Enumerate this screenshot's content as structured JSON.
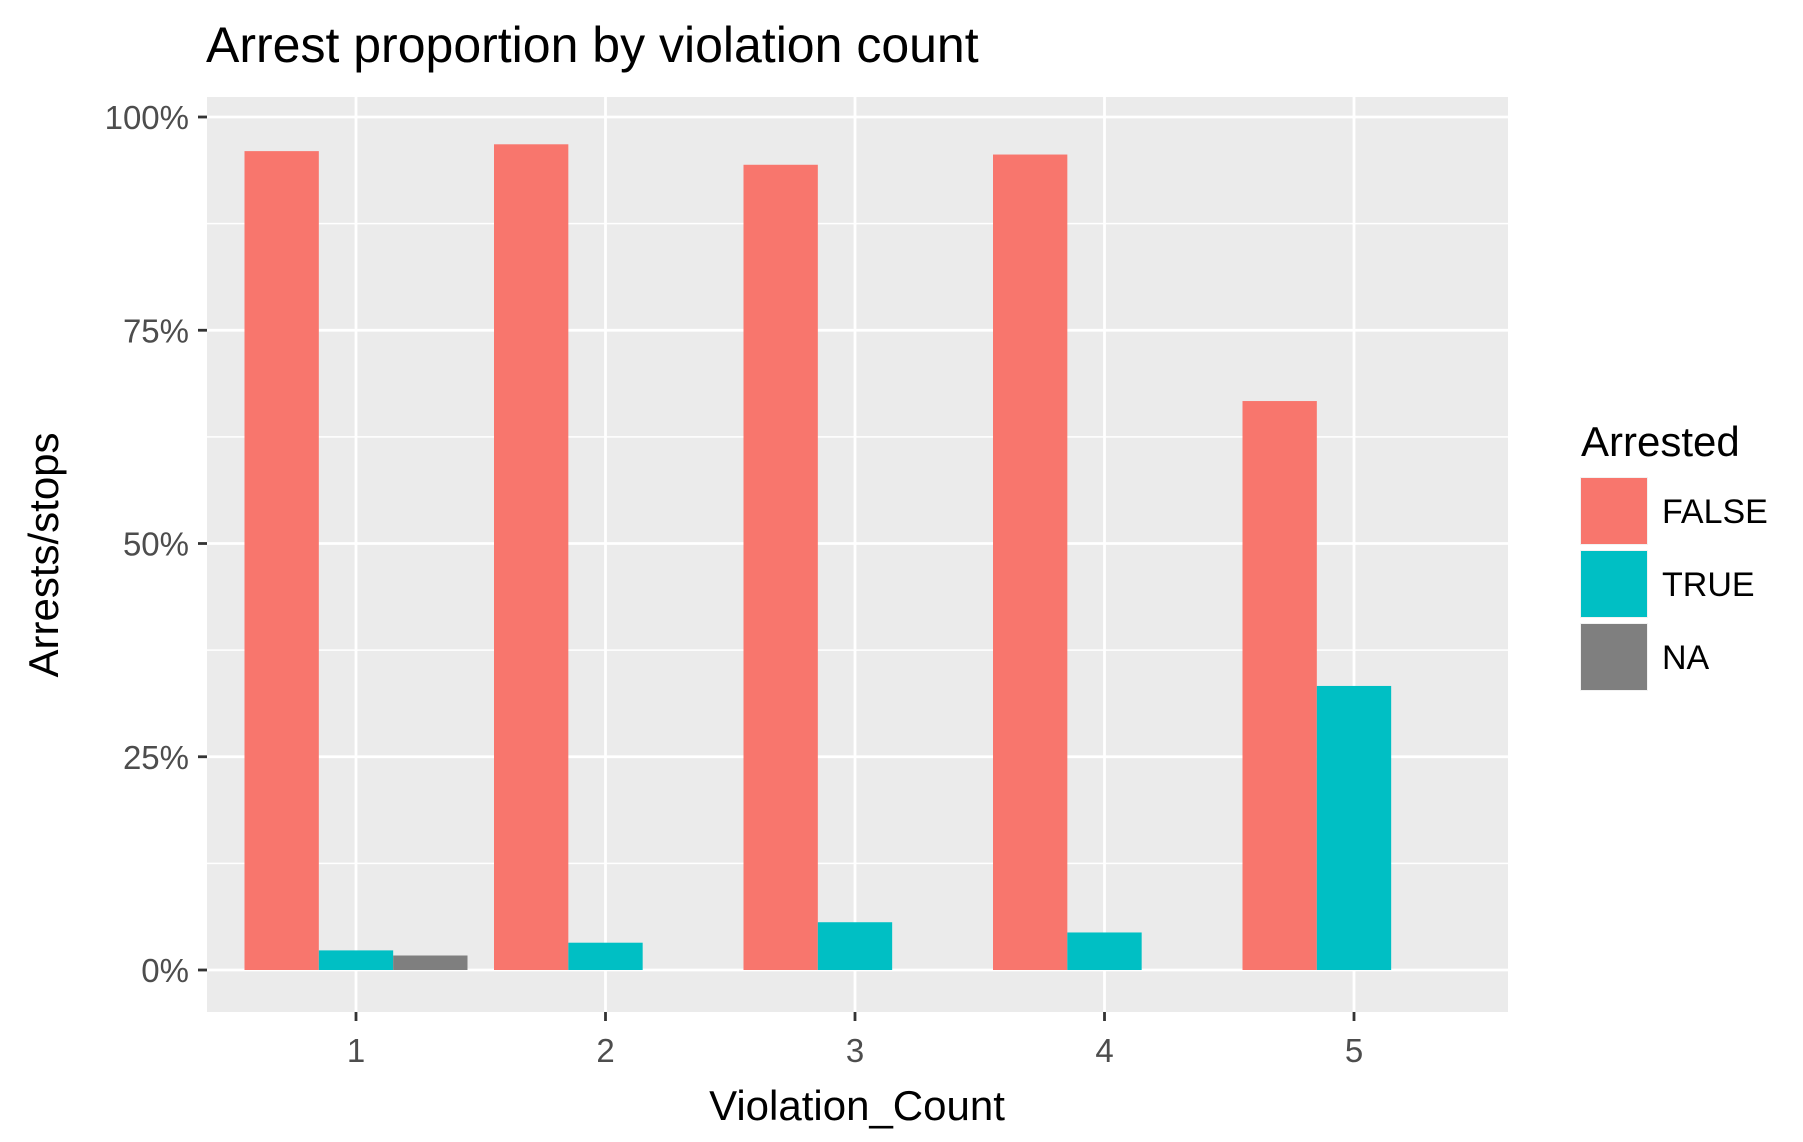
{
  "chart_data": {
    "type": "bar",
    "title": "Arrest proportion by violation count",
    "xlabel": "Violation_Count",
    "ylabel": "Arrests/stops",
    "categories": [
      "1",
      "2",
      "3",
      "4",
      "5"
    ],
    "series": [
      {
        "name": "FALSE",
        "color": "#f8766d",
        "values": [
          96.0,
          96.8,
          94.4,
          95.6,
          66.7
        ]
      },
      {
        "name": "TRUE",
        "color": "#00bfc4",
        "values": [
          2.3,
          3.2,
          5.6,
          4.4,
          33.3
        ]
      },
      {
        "name": "NA",
        "color": "#7f7f7f",
        "values": [
          1.7,
          null,
          null,
          null,
          null
        ]
      }
    ],
    "ylim": [
      0,
      100
    ],
    "yticks": [
      0,
      25,
      50,
      75,
      100
    ],
    "ytick_labels": [
      "0%",
      "25%",
      "50%",
      "75%",
      "100%"
    ],
    "legend": {
      "title": "Arrested",
      "placement": "right"
    },
    "grid": true,
    "panel_color": "#ebebeb",
    "grid_color": "#ffffff"
  }
}
